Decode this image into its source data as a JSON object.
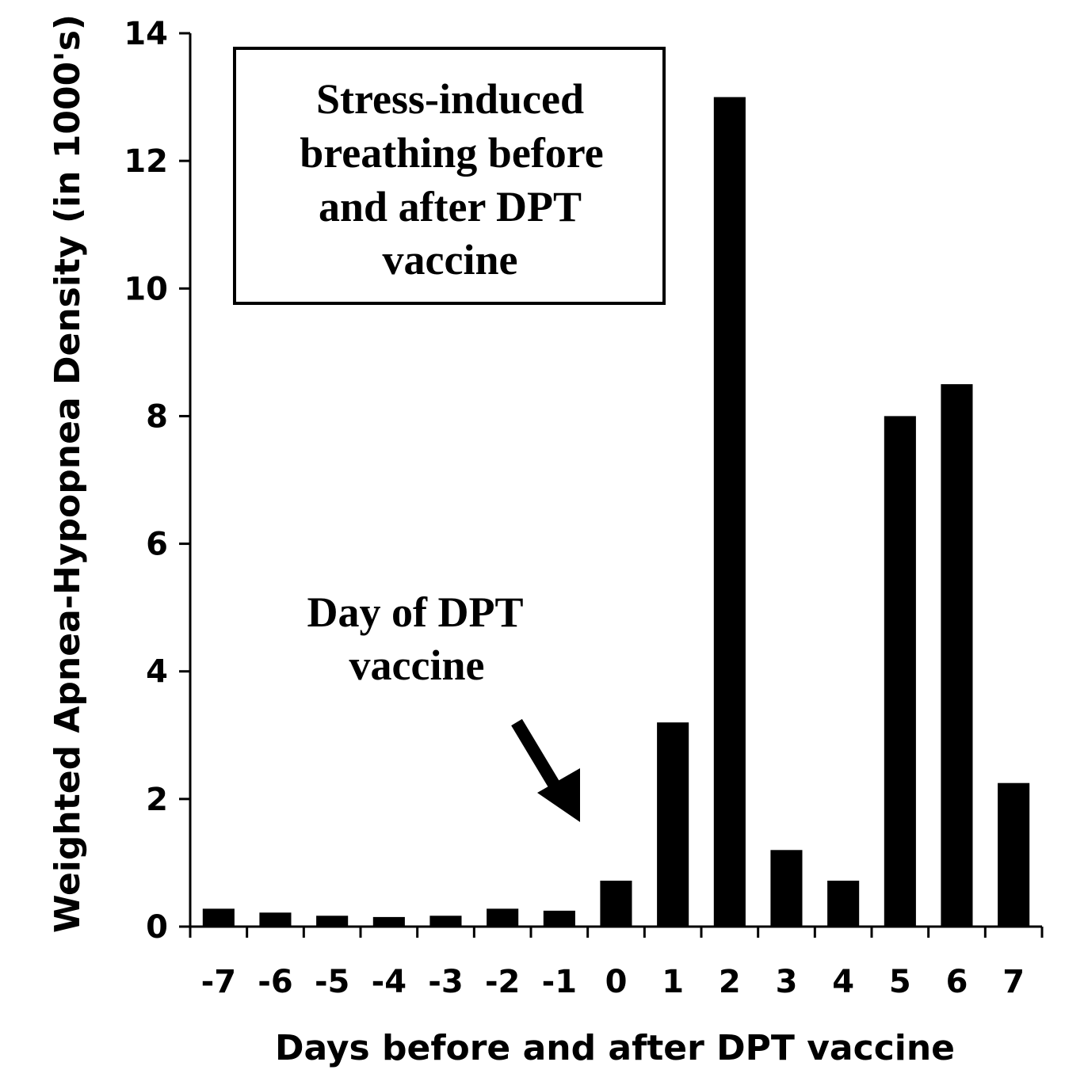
{
  "chart_data": {
    "type": "bar",
    "categories": [
      "-7",
      "-6",
      "-5",
      "-4",
      "-3",
      "-2",
      "-1",
      "0",
      "1",
      "2",
      "3",
      "4",
      "5",
      "6",
      "7"
    ],
    "values": [
      0.28,
      0.22,
      0.17,
      0.15,
      0.17,
      0.28,
      0.25,
      0.72,
      3.2,
      13.0,
      1.2,
      0.72,
      8.0,
      8.5,
      2.25
    ],
    "ylim": [
      0,
      14
    ],
    "yticks": [
      "0",
      "2",
      "4",
      "6",
      "8",
      "10",
      "12",
      "14"
    ],
    "xlabel": "Days before and after DPT vaccine",
    "ylabel": "Weighted Apnea-Hypopnea Density (in 1000's)",
    "title_box_lines": [
      "Stress-induced",
      "breathing before",
      "and after DPT",
      "vaccine"
    ],
    "annotation_lines": [
      "Day of DPT",
      "vaccine"
    ],
    "annotation_points_to": "0",
    "bar_color": "#000000",
    "grid": false,
    "legend": "none"
  }
}
